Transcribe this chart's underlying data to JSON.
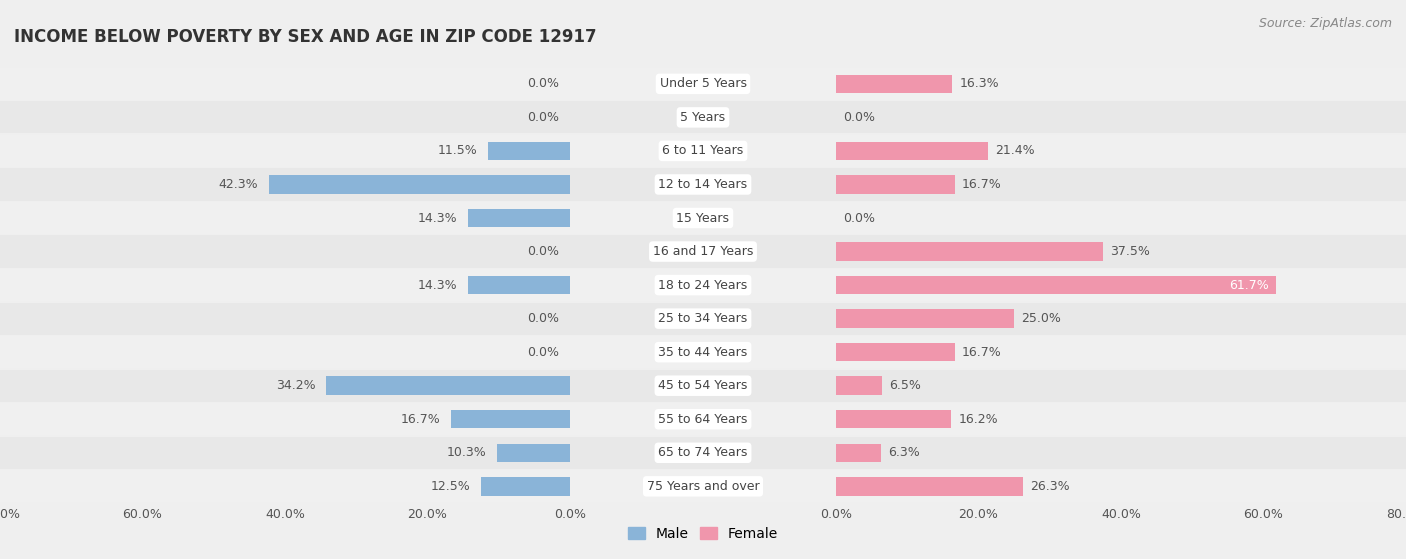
{
  "title": "INCOME BELOW POVERTY BY SEX AND AGE IN ZIP CODE 12917",
  "source": "Source: ZipAtlas.com",
  "categories": [
    "Under 5 Years",
    "5 Years",
    "6 to 11 Years",
    "12 to 14 Years",
    "15 Years",
    "16 and 17 Years",
    "18 to 24 Years",
    "25 to 34 Years",
    "35 to 44 Years",
    "45 to 54 Years",
    "55 to 64 Years",
    "65 to 74 Years",
    "75 Years and over"
  ],
  "male": [
    0.0,
    0.0,
    11.5,
    42.3,
    14.3,
    0.0,
    14.3,
    0.0,
    0.0,
    34.2,
    16.7,
    10.3,
    12.5
  ],
  "female": [
    16.3,
    0.0,
    21.4,
    16.7,
    0.0,
    37.5,
    61.7,
    25.0,
    16.7,
    6.5,
    16.2,
    6.3,
    26.3
  ],
  "male_color": "#8ab4d8",
  "female_color": "#f096ac",
  "background_color": "#efefef",
  "row_bg_color": "#e8e8e8",
  "row_white_color": "#f7f7f7",
  "xlim": 80.0,
  "bar_height": 0.55,
  "title_fontsize": 12,
  "label_fontsize": 9,
  "value_fontsize": 9,
  "axis_fontsize": 9,
  "source_fontsize": 9,
  "legend_fontsize": 10,
  "center_label_bg": "#ffffff"
}
